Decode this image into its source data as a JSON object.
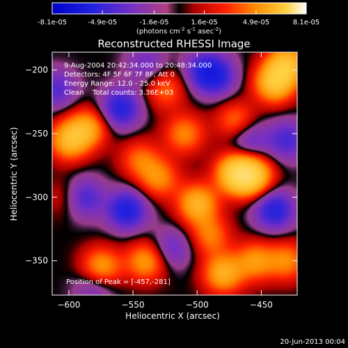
{
  "colorbar": {
    "tick_labels": [
      "-8.1e-05",
      "-4.9e-05",
      "-1.6e-05",
      "1.6e-05",
      "4.9e-05",
      "8.1e-05"
    ],
    "tick_values": [
      -8.1e-05,
      -4.9e-05,
      -1.6e-05,
      1.6e-05,
      4.9e-05,
      8.1e-05
    ],
    "range": [
      -8.1e-05,
      8.1e-05
    ],
    "units_prefix": "(photons cm",
    "units_exp1": "-2",
    "units_mid": " s",
    "units_exp2": "-1",
    "units_mid2": " asec",
    "units_exp3": "-2",
    "units_suffix": ")"
  },
  "chart_data": {
    "type": "heatmap",
    "title": "Reconstructed RHESSI Image",
    "xlabel": "Heliocentric X (arcsec)",
    "ylabel": "Heliocentric Y (arcsec)",
    "xlim": [
      -613,
      -422
    ],
    "ylim": [
      -377,
      -186
    ],
    "xticks": [
      -600,
      -550,
      -500,
      -450
    ],
    "yticks": [
      -200,
      -250,
      -300,
      -350
    ],
    "xtick_labels": [
      "−600",
      "−550",
      "−500",
      "−450"
    ],
    "ytick_labels": [
      "−200",
      "−250",
      "−300",
      "−350"
    ],
    "colormap": "black-blue-purple-red-orange-yellow-white",
    "annotations": [
      "9-Aug-2004 20:42:34.000 to 20:48:34.000",
      "Detectors: 4F 5F 6F 7F 8F, Att 0",
      "Energy Range: 12.0 - 25.0 keV",
      "Clean    Total counts: 3.36E+03"
    ],
    "peak_label": "Position of Peak = [-457,-281]",
    "peak_position": [
      -457,
      -281
    ],
    "components": [
      {
        "x": -470,
        "y": -281,
        "amp": 1.0
      },
      {
        "x": -457,
        "y": -283,
        "amp": 0.95
      },
      {
        "x": -500,
        "y": -305,
        "amp": 0.8
      },
      {
        "x": -440,
        "y": -210,
        "amp": 0.9
      },
      {
        "x": -430,
        "y": -195,
        "amp": 0.85
      },
      {
        "x": -600,
        "y": -255,
        "amp": 0.8
      },
      {
        "x": -585,
        "y": -245,
        "amp": 0.65
      },
      {
        "x": -575,
        "y": -355,
        "amp": 0.7
      },
      {
        "x": -540,
        "y": -350,
        "amp": 0.65
      },
      {
        "x": -480,
        "y": -360,
        "amp": 0.75
      },
      {
        "x": -455,
        "y": -350,
        "amp": 0.6
      },
      {
        "x": -530,
        "y": -285,
        "amp": 0.55
      },
      {
        "x": -545,
        "y": -270,
        "amp": 0.45
      },
      {
        "x": -525,
        "y": -215,
        "amp": 0.45
      },
      {
        "x": -510,
        "y": -250,
        "amp": 0.55
      },
      {
        "x": -470,
        "y": -240,
        "amp": 0.5
      },
      {
        "x": -600,
        "y": -300,
        "amp": 0.35
      },
      {
        "x": -490,
        "y": -330,
        "amp": 0.5
      },
      {
        "x": -430,
        "y": -350,
        "amp": 0.55
      },
      {
        "x": -560,
        "y": -230,
        "amp": -0.7
      },
      {
        "x": -555,
        "y": -310,
        "amp": -0.75
      },
      {
        "x": -590,
        "y": -300,
        "amp": -0.65
      },
      {
        "x": -440,
        "y": -310,
        "amp": -0.7
      },
      {
        "x": -485,
        "y": -205,
        "amp": -0.55
      },
      {
        "x": -460,
        "y": -255,
        "amp": -0.45
      },
      {
        "x": -495,
        "y": -200,
        "amp": -0.5
      },
      {
        "x": -430,
        "y": -255,
        "amp": -0.5
      },
      {
        "x": -580,
        "y": -370,
        "amp": -0.35
      },
      {
        "x": -520,
        "y": -340,
        "amp": -0.4
      },
      {
        "x": -610,
        "y": -215,
        "amp": -0.45
      },
      {
        "x": -540,
        "y": -195,
        "amp": -0.35
      }
    ]
  },
  "footer": {
    "date": "20-Jun-2013 00:04"
  }
}
